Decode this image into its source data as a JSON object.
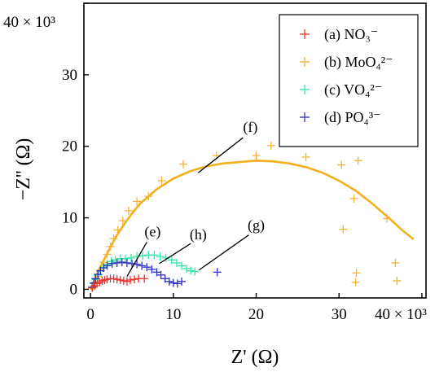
{
  "chart_data": {
    "type": "scatter",
    "title": "",
    "xlabel": "Z' (Ω)",
    "ylabel": "−Z'' (Ω)",
    "x_multiplier_label": "× 10³",
    "y_multiplier_label": "× 10³",
    "xlim": [
      -0.8,
      40.5
    ],
    "ylim": [
      -1.2,
      40
    ],
    "xticks": [
      0,
      10,
      20,
      30,
      40
    ],
    "yticks": [
      0,
      10,
      20,
      30,
      40
    ],
    "grid": false,
    "legend_position": "top-right",
    "series": [
      {
        "name": "(a) NO₃⁻",
        "color": "#e8332b",
        "points": [
          [
            0.2,
            0.2
          ],
          [
            0.5,
            0.5
          ],
          [
            0.8,
            0.8
          ],
          [
            1.1,
            1.0
          ],
          [
            1.4,
            1.2
          ],
          [
            1.7,
            1.3
          ],
          [
            2.0,
            1.4
          ],
          [
            2.4,
            1.5
          ],
          [
            2.8,
            1.5
          ],
          [
            3.2,
            1.4
          ],
          [
            3.6,
            1.3
          ],
          [
            4.0,
            1.2
          ],
          [
            4.4,
            1.1
          ],
          [
            4.8,
            1.3
          ],
          [
            5.3,
            1.4
          ],
          [
            5.8,
            1.5
          ],
          [
            6.5,
            1.5
          ]
        ]
      },
      {
        "name": "(b) MoO₄²⁻",
        "color": "#f5b335",
        "points": [
          [
            0.3,
            0.3
          ],
          [
            0.6,
            1.0
          ],
          [
            0.9,
            1.8
          ],
          [
            1.2,
            2.7
          ],
          [
            1.6,
            3.8
          ],
          [
            2.0,
            4.9
          ],
          [
            2.4,
            6.0
          ],
          [
            2.8,
            7.1
          ],
          [
            3.3,
            8.3
          ],
          [
            3.9,
            9.6
          ],
          [
            4.6,
            11.0
          ],
          [
            5.6,
            12.3
          ],
          [
            7.0,
            13.0
          ],
          [
            8.6,
            15.2
          ],
          [
            11.2,
            17.5
          ],
          [
            15.2,
            18.7
          ],
          [
            20.0,
            18.7
          ],
          [
            21.8,
            20.1
          ],
          [
            26.0,
            18.5
          ],
          [
            30.3,
            17.4
          ],
          [
            32.3,
            18.0
          ],
          [
            31.8,
            12.7
          ],
          [
            30.5,
            8.4
          ],
          [
            35.8,
            9.9
          ],
          [
            32.1,
            2.3
          ],
          [
            32.0,
            1.0
          ],
          [
            36.8,
            3.7
          ],
          [
            37.0,
            1.2
          ]
        ]
      },
      {
        "name": "(c) VO₄²⁻",
        "color": "#32e6a8",
        "points": [
          [
            0.2,
            0.3
          ],
          [
            0.4,
            0.8
          ],
          [
            0.6,
            1.4
          ],
          [
            0.9,
            2.0
          ],
          [
            1.2,
            2.6
          ],
          [
            1.6,
            3.1
          ],
          [
            2.0,
            3.5
          ],
          [
            2.5,
            3.9
          ],
          [
            3.0,
            4.1
          ],
          [
            3.6,
            4.3
          ],
          [
            4.2,
            4.3
          ],
          [
            4.9,
            4.4
          ],
          [
            5.6,
            4.6
          ],
          [
            6.3,
            4.7
          ],
          [
            7.0,
            4.8
          ],
          [
            7.7,
            4.8
          ],
          [
            8.4,
            4.6
          ],
          [
            9.1,
            4.4
          ],
          [
            9.8,
            4.1
          ],
          [
            10.4,
            3.7
          ],
          [
            11.0,
            3.3
          ],
          [
            11.6,
            2.9
          ],
          [
            12.1,
            2.6
          ],
          [
            12.6,
            2.5
          ]
        ]
      },
      {
        "name": "(d) PO₄³⁻",
        "color": "#2c2fc7",
        "points": [
          [
            0.2,
            0.3
          ],
          [
            0.4,
            0.9
          ],
          [
            0.6,
            1.5
          ],
          [
            0.9,
            2.1
          ],
          [
            1.2,
            2.6
          ],
          [
            1.6,
            3.0
          ],
          [
            2.0,
            3.3
          ],
          [
            2.6,
            3.6
          ],
          [
            3.2,
            3.7
          ],
          [
            3.8,
            3.8
          ],
          [
            4.4,
            3.7
          ],
          [
            5.0,
            3.6
          ],
          [
            5.6,
            3.5
          ],
          [
            6.2,
            3.3
          ],
          [
            6.8,
            3.1
          ],
          [
            7.4,
            2.8
          ],
          [
            8.0,
            2.4
          ],
          [
            8.5,
            2.0
          ],
          [
            9.0,
            1.5
          ],
          [
            9.5,
            1.1
          ],
          [
            10.0,
            0.9
          ],
          [
            10.5,
            0.8
          ],
          [
            11.0,
            1.1
          ],
          [
            15.3,
            2.4
          ]
        ]
      }
    ],
    "fit_line": {
      "color": "#f2b01e",
      "points": [
        [
          0.0,
          0.0
        ],
        [
          0.5,
          1.3
        ],
        [
          1.0,
          2.7
        ],
        [
          2.0,
          5.0
        ],
        [
          3.0,
          7.2
        ],
        [
          4.0,
          9.0
        ],
        [
          5.0,
          10.6
        ],
        [
          6.0,
          12.0
        ],
        [
          8.0,
          14.0
        ],
        [
          10.0,
          15.5
        ],
        [
          12.0,
          16.5
        ],
        [
          14.0,
          17.2
        ],
        [
          16.0,
          17.6
        ],
        [
          18.0,
          17.8
        ],
        [
          20.0,
          18.0
        ],
        [
          22.0,
          17.9
        ],
        [
          24.0,
          17.6
        ],
        [
          26.0,
          17.1
        ],
        [
          28.0,
          16.3
        ],
        [
          30.0,
          15.2
        ],
        [
          32.0,
          13.8
        ],
        [
          34.0,
          12.0
        ],
        [
          36.0,
          10.0
        ],
        [
          37.5,
          8.4
        ],
        [
          39.0,
          7.0
        ]
      ]
    },
    "annotations": [
      {
        "label": "(f)",
        "text_at": [
          19.3,
          22.0
        ],
        "line_from": [
          18.4,
          21.2
        ],
        "line_to": [
          13.0,
          16.3
        ]
      },
      {
        "label": "(e)",
        "text_at": [
          7.5,
          7.4
        ],
        "line_from": [
          6.8,
          6.6
        ],
        "line_to": [
          4.4,
          1.8
        ]
      },
      {
        "label": "(h)",
        "text_at": [
          13.0,
          7.0
        ],
        "line_from": [
          12.1,
          6.4
        ],
        "line_to": [
          8.3,
          3.6
        ]
      },
      {
        "label": "(g)",
        "text_at": [
          20.0,
          8.3
        ],
        "line_from": [
          19.1,
          7.6
        ],
        "line_to": [
          13.1,
          2.7
        ]
      }
    ]
  }
}
